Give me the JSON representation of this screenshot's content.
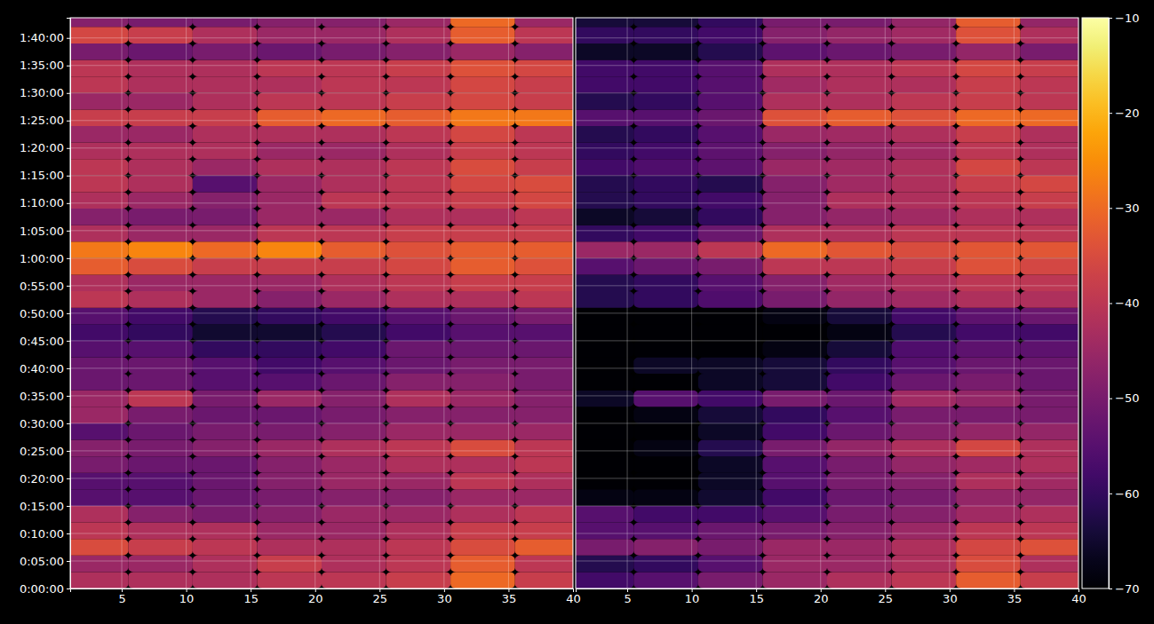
{
  "chart_data": [
    {
      "type": "heatmap",
      "grid": true,
      "xlim": [
        1,
        40
      ],
      "xticks": [
        5,
        10,
        15,
        20,
        25,
        30,
        35,
        40
      ],
      "ylim": [
        0,
        6220
      ],
      "yticks": [
        {
          "value": 0,
          "label": "0:00:00"
        },
        {
          "value": 300,
          "label": "0:05:00"
        },
        {
          "value": 600,
          "label": "0:10:00"
        },
        {
          "value": 900,
          "label": "0:15:00"
        },
        {
          "value": 1200,
          "label": "0:20:00"
        },
        {
          "value": 1500,
          "label": "0:25:00"
        },
        {
          "value": 1800,
          "label": "0:30:00"
        },
        {
          "value": 2100,
          "label": "0:35:00"
        },
        {
          "value": 2400,
          "label": "0:40:00"
        },
        {
          "value": 2700,
          "label": "0:45:00"
        },
        {
          "value": 3000,
          "label": "0:50:00"
        },
        {
          "value": 3300,
          "label": "0:55:00"
        },
        {
          "value": 3600,
          "label": "1:00:00"
        },
        {
          "value": 3900,
          "label": "1:05:00"
        },
        {
          "value": 4200,
          "label": "1:10:00"
        },
        {
          "value": 4500,
          "label": "1:15:00"
        },
        {
          "value": 4800,
          "label": "1:20:00"
        },
        {
          "value": 5100,
          "label": "1:25:00"
        },
        {
          "value": 5400,
          "label": "1:30:00"
        },
        {
          "value": 5700,
          "label": "1:35:00"
        },
        {
          "value": 6000,
          "label": "1:40:00"
        }
      ],
      "colorbar": {
        "range": [
          -70,
          -10
        ],
        "ticks": [
          {
            "value": -70,
            "label": "−70"
          },
          {
            "value": -60,
            "label": "−60"
          },
          {
            "value": -50,
            "label": "−50"
          },
          {
            "value": -40,
            "label": "−40"
          },
          {
            "value": -30,
            "label": "−30"
          },
          {
            "value": -20,
            "label": "−20"
          },
          {
            "value": -10,
            "label": "−10"
          }
        ]
      },
      "x": [
        3,
        8,
        13,
        18,
        23,
        28,
        33,
        38
      ],
      "y": [
        90,
        270,
        450,
        630,
        810,
        990,
        1170,
        1350,
        1530,
        1710,
        1890,
        2070,
        2250,
        2430,
        2610,
        2790,
        2970,
        3150,
        3330,
        3510,
        3690,
        3870,
        4050,
        4230,
        4410,
        4590,
        4770,
        4950,
        5130,
        5310,
        5490,
        5670,
        5850,
        6030,
        6210
      ],
      "values": [
        [
          -42,
          -42,
          -42,
          -40,
          -40,
          -38,
          -30,
          -38
        ],
        [
          -45,
          -45,
          -42,
          -38,
          -42,
          -40,
          -32,
          -40
        ],
        [
          -35,
          -38,
          -40,
          -42,
          -42,
          -40,
          -35,
          -32
        ],
        [
          -40,
          -42,
          -42,
          -45,
          -45,
          -42,
          -38,
          -38
        ],
        [
          -42,
          -48,
          -50,
          -48,
          -45,
          -45,
          -42,
          -40
        ],
        [
          -55,
          -55,
          -52,
          -50,
          -48,
          -48,
          -45,
          -45
        ],
        [
          -55,
          -55,
          -52,
          -48,
          -45,
          -45,
          -40,
          -42
        ],
        [
          -50,
          -52,
          -52,
          -48,
          -45,
          -42,
          -42,
          -40
        ],
        [
          -48,
          -50,
          -48,
          -45,
          -42,
          -40,
          -35,
          -40
        ],
        [
          -55,
          -52,
          -50,
          -50,
          -48,
          -45,
          -45,
          -45
        ],
        [
          -45,
          -50,
          -52,
          -52,
          -50,
          -48,
          -48,
          -48
        ],
        [
          -45,
          -40,
          -50,
          -45,
          -48,
          -42,
          -45,
          -48
        ],
        [
          -52,
          -52,
          -55,
          -55,
          -52,
          -48,
          -48,
          -50
        ],
        [
          -52,
          -52,
          -55,
          -58,
          -55,
          -52,
          -50,
          -50
        ],
        [
          -55,
          -55,
          -60,
          -60,
          -58,
          -52,
          -52,
          -52
        ],
        [
          -58,
          -60,
          -65,
          -65,
          -62,
          -58,
          -55,
          -55
        ],
        [
          -55,
          -58,
          -62,
          -60,
          -58,
          -55,
          -52,
          -50
        ],
        [
          -40,
          -42,
          -45,
          -48,
          -45,
          -42,
          -42,
          -40
        ],
        [
          -42,
          -45,
          -45,
          -45,
          -42,
          -40,
          -38,
          -38
        ],
        [
          -32,
          -35,
          -38,
          -38,
          -38,
          -36,
          -32,
          -34
        ],
        [
          -28,
          -26,
          -30,
          -26,
          -32,
          -34,
          -32,
          -32
        ],
        [
          -42,
          -45,
          -45,
          -40,
          -40,
          -38,
          -38,
          -38
        ],
        [
          -48,
          -50,
          -50,
          -45,
          -45,
          -42,
          -42,
          -40
        ],
        [
          -42,
          -45,
          -48,
          -45,
          -40,
          -40,
          -38,
          -36
        ],
        [
          -40,
          -42,
          -55,
          -45,
          -42,
          -40,
          -36,
          -35
        ],
        [
          -40,
          -42,
          -45,
          -42,
          -42,
          -40,
          -35,
          -38
        ],
        [
          -42,
          -42,
          -42,
          -45,
          -45,
          -42,
          -38,
          -40
        ],
        [
          -45,
          -45,
          -42,
          -42,
          -42,
          -40,
          -36,
          -40
        ],
        [
          -38,
          -38,
          -38,
          -32,
          -30,
          -32,
          -28,
          -28
        ],
        [
          -45,
          -45,
          -42,
          -40,
          -40,
          -38,
          -36,
          -38
        ],
        [
          -40,
          -42,
          -42,
          -42,
          -40,
          -40,
          -36,
          -38
        ],
        [
          -40,
          -42,
          -42,
          -40,
          -40,
          -38,
          -34,
          -36
        ],
        [
          -50,
          -52,
          -50,
          -52,
          -50,
          -48,
          -45,
          -48
        ],
        [
          -36,
          -38,
          -42,
          -45,
          -45,
          -42,
          -32,
          -40
        ],
        [
          -48,
          -50,
          -50,
          -48,
          -48,
          -45,
          -30,
          -45
        ]
      ]
    },
    {
      "type": "heatmap",
      "grid": true,
      "tick_labels": "x",
      "xlim": [
        1,
        40
      ],
      "xticks": [
        5,
        10,
        15,
        20,
        25,
        30,
        35,
        40
      ],
      "ylim": [
        0,
        6220
      ],
      "x": [
        3,
        8,
        13,
        18,
        23,
        28,
        33,
        38
      ],
      "y": [
        90,
        270,
        450,
        630,
        810,
        990,
        1170,
        1350,
        1530,
        1710,
        1890,
        2070,
        2250,
        2430,
        2610,
        2790,
        2970,
        3150,
        3330,
        3510,
        3690,
        3870,
        4050,
        4230,
        4410,
        4590,
        4770,
        4950,
        5130,
        5310,
        5490,
        5670,
        5850,
        6030,
        6210
      ],
      "values": [
        [
          -58,
          -55,
          -50,
          -45,
          -42,
          -40,
          -32,
          -38
        ],
        [
          -62,
          -60,
          -55,
          -45,
          -45,
          -42,
          -35,
          -42
        ],
        [
          -50,
          -48,
          -50,
          -45,
          -45,
          -42,
          -36,
          -34
        ],
        [
          -55,
          -55,
          -52,
          -50,
          -48,
          -45,
          -40,
          -40
        ],
        [
          -55,
          -58,
          -58,
          -55,
          -50,
          -48,
          -44,
          -42
        ],
        [
          -68,
          -68,
          -65,
          -58,
          -52,
          -50,
          -46,
          -46
        ],
        [
          -70,
          -70,
          -66,
          -55,
          -50,
          -48,
          -42,
          -44
        ],
        [
          -70,
          -70,
          -66,
          -55,
          -50,
          -46,
          -44,
          -42
        ],
        [
          -70,
          -68,
          -62,
          -50,
          -46,
          -42,
          -36,
          -42
        ],
        [
          -70,
          -70,
          -66,
          -58,
          -52,
          -48,
          -46,
          -46
        ],
        [
          -70,
          -68,
          -64,
          -60,
          -55,
          -50,
          -50,
          -50
        ],
        [
          -66,
          -55,
          -58,
          -50,
          -52,
          -44,
          -46,
          -50
        ],
        [
          -70,
          -70,
          -66,
          -64,
          -58,
          -52,
          -50,
          -52
        ],
        [
          -70,
          -66,
          -66,
          -64,
          -60,
          -55,
          -52,
          -52
        ],
        [
          -70,
          -70,
          -70,
          -68,
          -64,
          -56,
          -54,
          -54
        ],
        [
          -70,
          -70,
          -70,
          -70,
          -68,
          -62,
          -58,
          -58
        ],
        [
          -70,
          -70,
          -70,
          -68,
          -64,
          -58,
          -54,
          -52
        ],
        [
          -62,
          -60,
          -56,
          -50,
          -46,
          -44,
          -42,
          -42
        ],
        [
          -62,
          -60,
          -55,
          -48,
          -44,
          -42,
          -40,
          -40
        ],
        [
          -55,
          -52,
          -50,
          -40,
          -40,
          -38,
          -34,
          -36
        ],
        [
          -45,
          -45,
          -40,
          -30,
          -33,
          -35,
          -33,
          -33
        ],
        [
          -60,
          -58,
          -52,
          -42,
          -42,
          -40,
          -40,
          -40
        ],
        [
          -66,
          -64,
          -60,
          -48,
          -46,
          -44,
          -42,
          -42
        ],
        [
          -62,
          -60,
          -58,
          -48,
          -42,
          -42,
          -40,
          -38
        ],
        [
          -62,
          -60,
          -62,
          -48,
          -44,
          -42,
          -38,
          -36
        ],
        [
          -58,
          -56,
          -54,
          -45,
          -44,
          -42,
          -36,
          -40
        ],
        [
          -60,
          -58,
          -54,
          -48,
          -46,
          -44,
          -40,
          -42
        ],
        [
          -62,
          -60,
          -55,
          -45,
          -44,
          -42,
          -38,
          -42
        ],
        [
          -55,
          -55,
          -52,
          -34,
          -32,
          -34,
          -30,
          -30
        ],
        [
          -62,
          -60,
          -55,
          -42,
          -42,
          -40,
          -38,
          -40
        ],
        [
          -58,
          -58,
          -55,
          -44,
          -42,
          -42,
          -38,
          -40
        ],
        [
          -58,
          -58,
          -55,
          -42,
          -42,
          -40,
          -36,
          -38
        ],
        [
          -66,
          -66,
          -62,
          -54,
          -52,
          -50,
          -46,
          -50
        ],
        [
          -60,
          -60,
          -58,
          -48,
          -46,
          -44,
          -34,
          -42
        ],
        [
          -64,
          -64,
          -60,
          -50,
          -50,
          -46,
          -32,
          -46
        ]
      ]
    }
  ]
}
